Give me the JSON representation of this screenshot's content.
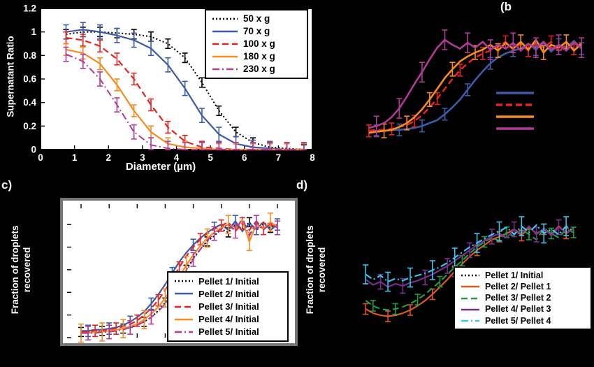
{
  "panels": {
    "b": {
      "label": "(b"
    },
    "c": {
      "label": "c)"
    },
    "d": {
      "label": "d)"
    }
  },
  "chart_data": [
    {
      "id": "a",
      "type": "line",
      "title": "",
      "xlabel": "Diameter (µm)",
      "ylabel": "Supernatant Ratio",
      "xlim": [
        0,
        8
      ],
      "ylim": [
        0,
        1.2
      ],
      "xticks": [
        0,
        1,
        2,
        3,
        4,
        5,
        6,
        7,
        8
      ],
      "xtick_labels": [
        "0",
        "1",
        "2",
        "3",
        "4",
        "5",
        "6",
        "7",
        "8"
      ],
      "yticks": [
        0,
        0.2,
        0.4,
        0.6,
        0.8,
        1,
        1.2
      ],
      "ytick_labels": [
        "0",
        "0.2",
        "0.4",
        "0.6",
        "0.8",
        "1",
        "1.2"
      ],
      "tick_label_color": "#ffffff",
      "grid": false,
      "legend_position": "top-right",
      "x": [
        0.75,
        1.25,
        1.75,
        2.25,
        2.75,
        3.25,
        3.75,
        4.25,
        4.75,
        5.25,
        5.75,
        6.25,
        6.75,
        7.25,
        7.75
      ],
      "series": [
        {
          "name": "50 x g",
          "color": "#000000",
          "dash": "dotted",
          "width": 2,
          "err": 0.04,
          "err_every": 1,
          "y": [
            0.98,
            1.0,
            1.0,
            0.99,
            0.98,
            0.96,
            0.9,
            0.78,
            0.57,
            0.33,
            0.15,
            0.06,
            0.02,
            0.01,
            0.0
          ]
        },
        {
          "name": "70 x g",
          "color": "#3C5BA8",
          "dash": "solid",
          "width": 2.2,
          "err": 0.06,
          "err_every": 1,
          "y": [
            1.0,
            1.02,
            1.0,
            0.97,
            0.93,
            0.86,
            0.72,
            0.52,
            0.29,
            0.13,
            0.05,
            0.02,
            0.01,
            0.0,
            0.0
          ]
        },
        {
          "name": "100 x g",
          "color": "#E52421",
          "dash": "dashed",
          "width": 2.2,
          "err": 0.05,
          "err_every": 1,
          "y": [
            0.95,
            0.93,
            0.88,
            0.77,
            0.6,
            0.38,
            0.19,
            0.07,
            0.02,
            0.01,
            0.0,
            0.0,
            0.0,
            0.0,
            0.0
          ]
        },
        {
          "name": "180 x g",
          "color": "#F68B1F",
          "dash": "solid",
          "width": 2.2,
          "err": 0.05,
          "err_every": 1,
          "y": [
            0.85,
            0.82,
            0.73,
            0.55,
            0.33,
            0.15,
            0.05,
            0.02,
            0.01,
            0.0,
            0.0,
            0.0,
            0.0,
            0.0,
            0.0
          ]
        },
        {
          "name": "230 x g",
          "color": "#B23A97",
          "dash": "dashdot",
          "width": 2,
          "err": 0.06,
          "err_every": 1,
          "y": [
            0.81,
            0.75,
            0.6,
            0.38,
            0.15,
            0.04,
            0.01,
            0.0,
            0.0,
            0.0,
            0.0,
            0.0,
            0.0,
            0.0,
            0.0
          ]
        }
      ]
    },
    {
      "id": "b",
      "type": "line",
      "title": "",
      "xlabel": "",
      "ylabel": "",
      "xlim": [
        0.75,
        8.25
      ],
      "ylim": [
        0,
        1.35
      ],
      "axes_visible": false,
      "grid": false,
      "legend_position": "right-swatches-only",
      "x": [
        1,
        1.25,
        1.5,
        1.75,
        2,
        2.25,
        2.5,
        2.75,
        3,
        3.25,
        3.5,
        3.75,
        4,
        4.25,
        4.5,
        4.75,
        5,
        5.25,
        5.5,
        5.75,
        6,
        6.25,
        6.5,
        6.75,
        7,
        7.25,
        7.5,
        7.75,
        8
      ],
      "series": [
        {
          "name": "",
          "color": "#3C5BA8",
          "dash": "solid",
          "width": 2.6,
          "err": 0.06,
          "err_every": 3,
          "err_phase": 1,
          "y": [
            0.12,
            0.12,
            0.12,
            0.13,
            0.13,
            0.14,
            0.15,
            0.17,
            0.2,
            0.23,
            0.29,
            0.36,
            0.44,
            0.54,
            0.64,
            0.73,
            0.81,
            0.87,
            0.91,
            0.94,
            0.96,
            1.01,
            0.95,
            1.02,
            0.93,
            1.0,
            0.97,
            1.04,
            0.96
          ]
        },
        {
          "name": "",
          "color": "#E52421",
          "dash": "dashed",
          "width": 2.6,
          "err": 0.06,
          "err_every": 3,
          "err_phase": 0,
          "y": [
            0.12,
            0.13,
            0.13,
            0.14,
            0.16,
            0.18,
            0.22,
            0.28,
            0.36,
            0.45,
            0.55,
            0.65,
            0.74,
            0.81,
            0.87,
            0.91,
            0.94,
            0.98,
            1.03,
            0.95,
            1.01,
            0.94,
            1.02,
            0.97,
            1.03,
            0.93,
            1.0,
            0.96,
            1.02
          ]
        },
        {
          "name": "",
          "color": "#F68B1F",
          "dash": "solid",
          "width": 2.6,
          "err": 0.07,
          "err_every": 3,
          "err_phase": 2,
          "y": [
            0.1,
            0.11,
            0.12,
            0.13,
            0.16,
            0.2,
            0.26,
            0.34,
            0.44,
            0.55,
            0.66,
            0.75,
            0.83,
            0.88,
            0.92,
            0.95,
            1.0,
            0.94,
            1.02,
            0.96,
            1.03,
            0.95,
            1.05,
            0.92,
            1.0,
            0.97,
            1.03,
            0.94,
            1.01
          ]
        },
        {
          "name": "",
          "color": "#B23A97",
          "dash": "solid",
          "width": 2.6,
          "err": 0.1,
          "err_every": 3,
          "err_phase": 1,
          "y": [
            0.15,
            0.17,
            0.2,
            0.26,
            0.35,
            0.47,
            0.6,
            0.72,
            0.85,
            0.97,
            1.05,
            1.0,
            0.96,
            1.02,
            0.97,
            1.03,
            0.95,
            1.0,
            0.96,
            1.02,
            0.94,
            1.01,
            0.97,
            1.03,
            0.95,
            1.0,
            0.94,
            1.02,
            0.97
          ]
        }
      ]
    },
    {
      "id": "c",
      "type": "line",
      "title": "",
      "xlabel": "",
      "ylabel": "Fraction of droplets\nrecovered",
      "xlim": [
        0.5,
        8.5
      ],
      "ylim": [
        0,
        1.18
      ],
      "xticks": [
        1,
        2,
        3,
        4,
        5,
        6,
        7,
        8
      ],
      "yticks": [
        0,
        0.2,
        0.4,
        0.6,
        0.8,
        1
      ],
      "grid": false,
      "legend_position": "bottom-right",
      "x": [
        1,
        1.25,
        1.5,
        1.75,
        2,
        2.25,
        2.5,
        2.75,
        3,
        3.25,
        3.5,
        3.75,
        4,
        4.25,
        4.5,
        4.75,
        5,
        5.25,
        5.5,
        5.75,
        6,
        6.25,
        6.5,
        6.75,
        7,
        7.25,
        7.5,
        7.75,
        8
      ],
      "series": [
        {
          "name": "Pellet 1/ Initial",
          "color": "#000000",
          "dash": "dotted",
          "width": 2,
          "err": 0.04,
          "err_every": 3,
          "err_phase": 0,
          "y": [
            0.05,
            0.05,
            0.05,
            0.06,
            0.06,
            0.07,
            0.08,
            0.09,
            0.11,
            0.14,
            0.18,
            0.24,
            0.31,
            0.4,
            0.5,
            0.6,
            0.7,
            0.78,
            0.85,
            0.9,
            0.96,
            0.93,
            1.0,
            0.96,
            1.02,
            0.95,
            1.0,
            0.97,
            1.01
          ]
        },
        {
          "name": "Pellet 2/ Initial",
          "color": "#3C5BA8",
          "dash": "solid",
          "width": 2.2,
          "err": 0.05,
          "err_every": 3,
          "err_phase": 1,
          "y": [
            0.06,
            0.06,
            0.07,
            0.07,
            0.08,
            0.09,
            0.11,
            0.14,
            0.18,
            0.23,
            0.3,
            0.38,
            0.47,
            0.57,
            0.67,
            0.75,
            0.82,
            0.88,
            0.93,
            0.97,
            1.0,
            0.95,
            1.03,
            0.94,
            1.01,
            0.96,
            1.02,
            0.95,
            1.0
          ]
        },
        {
          "name": "Pellet 3/ Initial",
          "color": "#E52421",
          "dash": "dashed",
          "width": 2.2,
          "err": 0.05,
          "err_every": 3,
          "err_phase": 2,
          "y": [
            0.05,
            0.05,
            0.06,
            0.06,
            0.07,
            0.08,
            0.1,
            0.12,
            0.15,
            0.2,
            0.26,
            0.33,
            0.42,
            0.52,
            0.62,
            0.72,
            0.8,
            0.87,
            0.92,
            0.96,
            0.99,
            1.02,
            0.94,
            1.01,
            0.95,
            1.03,
            0.96,
            1.0,
            0.97
          ]
        },
        {
          "name": "Pellet 4/ Initial",
          "color": "#F68B1F",
          "dash": "solid",
          "width": 2.2,
          "err": 0.08,
          "err_every": 3,
          "err_phase": 0,
          "y": [
            0.04,
            0.04,
            0.05,
            0.05,
            0.06,
            0.07,
            0.08,
            0.1,
            0.12,
            0.16,
            0.21,
            0.27,
            0.35,
            0.44,
            0.54,
            0.64,
            0.73,
            0.81,
            0.88,
            0.93,
            0.97,
            1.0,
            0.96,
            1.04,
            0.85,
            1.0,
            0.96,
            1.02,
            0.98
          ]
        },
        {
          "name": "Pellet 5/ Initial",
          "color": "#B23A97",
          "dash": "dashdot",
          "width": 2,
          "err": 0.06,
          "err_every": 3,
          "err_phase": 1,
          "y": [
            0.04,
            0.04,
            0.04,
            0.05,
            0.05,
            0.06,
            0.07,
            0.09,
            0.11,
            0.14,
            0.18,
            0.23,
            0.3,
            0.39,
            0.49,
            0.59,
            0.69,
            0.78,
            0.86,
            0.92,
            0.96,
            1.0,
            0.94,
            1.06,
            0.9,
            1.02,
            0.95,
            1.01,
            0.97
          ]
        }
      ]
    },
    {
      "id": "d",
      "type": "line",
      "title": "",
      "xlabel": "",
      "ylabel": "Fraction of droplets\nrecovered",
      "xlim": [
        0.5,
        8.5
      ],
      "ylim": [
        0,
        1.3
      ],
      "axes_visible": false,
      "grid": false,
      "legend_position": "bottom-right",
      "x": [
        1,
        1.25,
        1.5,
        1.75,
        2,
        2.25,
        2.5,
        2.75,
        3,
        3.25,
        3.5,
        3.75,
        4,
        4.25,
        4.5,
        4.75,
        5,
        5.25,
        5.5,
        5.75,
        6,
        6.25,
        6.5,
        6.75,
        7,
        7.25,
        7.5,
        7.75,
        8
      ],
      "series": [
        {
          "name": "Pellet 1/ Initial",
          "color": "#000000",
          "dash": "dotted",
          "width": 2,
          "err": 0.04,
          "err_every": 3,
          "err_phase": 2,
          "y": [
            0.42,
            0.4,
            0.39,
            0.39,
            0.4,
            0.41,
            0.43,
            0.45,
            0.48,
            0.52,
            0.56,
            0.61,
            0.66,
            0.71,
            0.76,
            0.81,
            0.85,
            0.89,
            0.92,
            0.95,
            0.97,
            1.0,
            0.97,
            1.01,
            0.96,
            1.0,
            0.97,
            1.02,
            0.98
          ]
        },
        {
          "name": "Pellet 2/ Pellet 1",
          "color": "#E2571E",
          "dash": "solid",
          "width": 2.2,
          "err": 0.05,
          "err_every": 3,
          "err_phase": 0,
          "y": [
            0.24,
            0.2,
            0.18,
            0.17,
            0.18,
            0.2,
            0.23,
            0.27,
            0.32,
            0.38,
            0.45,
            0.52,
            0.6,
            0.67,
            0.74,
            0.8,
            0.85,
            0.9,
            0.93,
            0.96,
            1.0,
            0.94,
            1.02,
            0.96,
            1.0,
            0.95,
            1.03,
            0.96,
            1.01
          ]
        },
        {
          "name": "Pellet 3/ Pellet 2",
          "color": "#1F9D48",
          "dash": "dashed",
          "width": 2.2,
          "err": 0.05,
          "err_every": 3,
          "err_phase": 1,
          "y": [
            0.32,
            0.27,
            0.24,
            0.23,
            0.24,
            0.26,
            0.29,
            0.33,
            0.38,
            0.44,
            0.5,
            0.57,
            0.64,
            0.7,
            0.77,
            0.83,
            0.88,
            0.92,
            0.89,
            0.97,
            0.93,
            1.0,
            0.95,
            0.9,
            1.01,
            0.96,
            0.92,
            1.0,
            0.97
          ]
        },
        {
          "name": "Pellet 4/ Pellet 3",
          "color": "#7B2E8E",
          "dash": "solid",
          "width": 2.2,
          "err": 0.07,
          "err_every": 3,
          "err_phase": 2,
          "y": [
            0.52,
            0.47,
            0.5,
            0.45,
            0.48,
            0.46,
            0.49,
            0.51,
            0.54,
            0.57,
            0.61,
            0.65,
            0.7,
            0.75,
            0.8,
            0.85,
            0.89,
            0.93,
            0.96,
            0.92,
            1.0,
            0.96,
            1.03,
            0.95,
            1.01,
            0.94,
            1.02,
            0.97,
            1.0
          ]
        },
        {
          "name": "Pellet 5/ Pellet 4",
          "color": "#3BC4EE",
          "dash": "dashdot",
          "width": 2.2,
          "err": 0.09,
          "err_every": 3,
          "err_phase": 0,
          "y": [
            0.57,
            0.52,
            0.56,
            0.5,
            0.53,
            0.51,
            0.54,
            0.56,
            0.58,
            0.61,
            0.64,
            0.68,
            0.73,
            0.78,
            0.83,
            0.87,
            0.91,
            0.95,
            0.98,
            1.02,
            0.95,
            1.03,
            0.97,
            1.04,
            0.96,
            1.0,
            0.95,
            1.03,
            0.98
          ]
        }
      ]
    }
  ]
}
